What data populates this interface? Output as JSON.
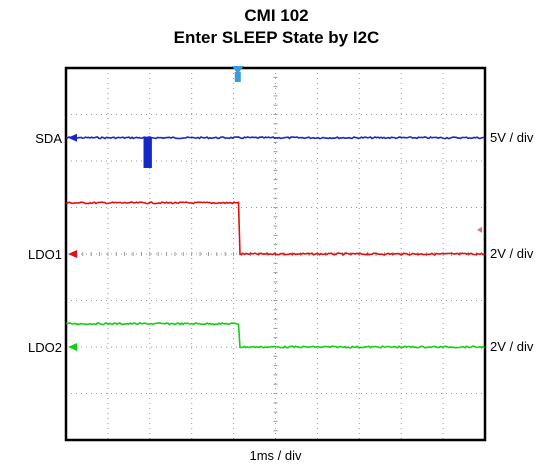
{
  "chart_data": {
    "type": "line",
    "title": "CMI 102",
    "subtitle": "Enter SLEEP State by I2C",
    "xlabel": "1ms / div",
    "x_divisions": 10,
    "y_divisions": 8,
    "grid": true,
    "trigger_position_div": 4.1,
    "colors": {
      "SDA": "#1428c8",
      "LDO1": "#e01010",
      "LDO2": "#10d010",
      "frame": "#000000",
      "grid": "#9a9a9a"
    },
    "series": [
      {
        "name": "SDA",
        "scale": "5V / div",
        "baseline_div": 6.5,
        "edge": "falling-pulse",
        "pulse_start_div": 1.85,
        "pulse_end_div": 2.05,
        "pulse_low_div": 5.85
      },
      {
        "name": "LDO1",
        "scale": "2V / div",
        "baseline_div": 4.0,
        "high_level_div": 5.1,
        "low_level_div": 4.0,
        "edge": "falling",
        "transition_div": 4.15
      },
      {
        "name": "LDO2",
        "scale": "2V / div",
        "baseline_div": 2.0,
        "high_level_div": 2.5,
        "low_level_div": 2.0,
        "edge": "falling",
        "transition_div": 4.15
      }
    ]
  }
}
